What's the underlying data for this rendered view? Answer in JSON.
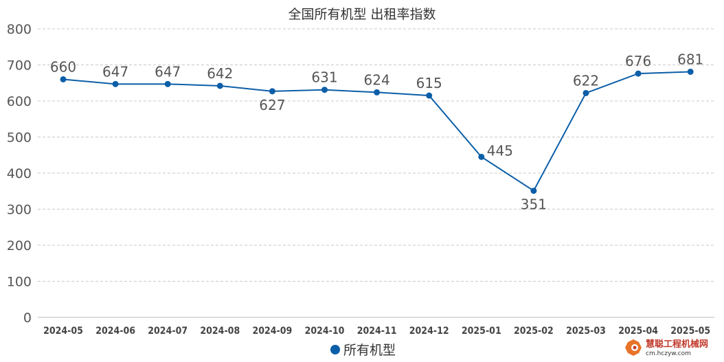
{
  "chart_data": {
    "type": "line",
    "title": "全国所有机型  出租率指数",
    "categories": [
      "2024-05",
      "2024-06",
      "2024-07",
      "2024-08",
      "2024-09",
      "2024-10",
      "2024-11",
      "2024-12",
      "2025-01",
      "2025-02",
      "2025-03",
      "2025-04",
      "2025-05"
    ],
    "series": [
      {
        "name": "所有机型",
        "values": [
          660,
          647,
          647,
          642,
          627,
          631,
          624,
          615,
          445,
          351,
          622,
          676,
          681
        ],
        "color": "#0b5ea8"
      }
    ],
    "ylim": [
      0,
      800
    ],
    "yticks": [
      0,
      100,
      200,
      300,
      400,
      500,
      600,
      700,
      800
    ],
    "grid": true,
    "legend_position": "bottom-center"
  },
  "watermark": {
    "name": "慧聪工程机械网",
    "url": "cm.hczyw.com",
    "logo_color": "#e8742a"
  }
}
